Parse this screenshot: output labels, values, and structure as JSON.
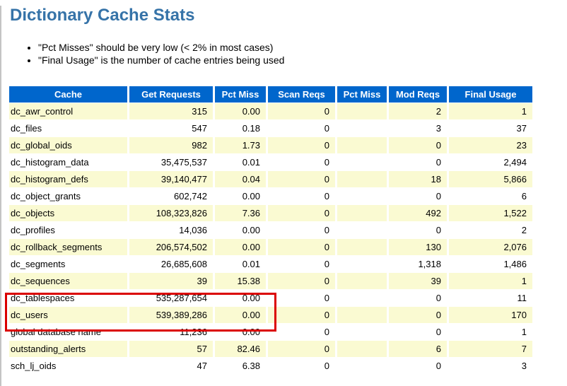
{
  "page": {
    "title": "Dictionary Cache Stats",
    "notes": [
      "\"Pct Misses\" should be very low (< 2% in most cases)",
      "\"Final Usage\" is the number of cache entries being used"
    ]
  },
  "colors": {
    "title_text": "#3673a8",
    "table_header_bg": "#0066cc",
    "table_header_text": "#ffffff",
    "alt_row_bg": "#fafad2",
    "highlight_border": "#db0000"
  },
  "table": {
    "headers": [
      "Cache",
      "Get Requests",
      "Pct Miss",
      "Scan Reqs",
      "Pct Miss",
      "Mod Reqs",
      "Final Usage"
    ],
    "rows": [
      [
        "dc_awr_control",
        "315",
        "0.00",
        "0",
        "",
        "2",
        "1"
      ],
      [
        "dc_files",
        "547",
        "0.18",
        "0",
        "",
        "3",
        "37"
      ],
      [
        "dc_global_oids",
        "982",
        "1.73",
        "0",
        "",
        "0",
        "23"
      ],
      [
        "dc_histogram_data",
        "35,475,537",
        "0.01",
        "0",
        "",
        "0",
        "2,494"
      ],
      [
        "dc_histogram_defs",
        "39,140,477",
        "0.04",
        "0",
        "",
        "18",
        "5,866"
      ],
      [
        "dc_object_grants",
        "602,742",
        "0.00",
        "0",
        "",
        "0",
        "6"
      ],
      [
        "dc_objects",
        "108,323,826",
        "7.36",
        "0",
        "",
        "492",
        "1,522"
      ],
      [
        "dc_profiles",
        "14,036",
        "0.00",
        "0",
        "",
        "0",
        "2"
      ],
      [
        "dc_rollback_segments",
        "206,574,502",
        "0.00",
        "0",
        "",
        "130",
        "2,076"
      ],
      [
        "dc_segments",
        "26,685,608",
        "0.01",
        "0",
        "",
        "1,318",
        "1,486"
      ],
      [
        "dc_sequences",
        "39",
        "15.38",
        "0",
        "",
        "39",
        "1"
      ],
      [
        "dc_tablespaces",
        "535,287,654",
        "0.00",
        "0",
        "",
        "0",
        "11"
      ],
      [
        "dc_users",
        "539,389,286",
        "0.00",
        "0",
        "",
        "0",
        "170"
      ],
      [
        "global database name",
        "11,236",
        "0.00",
        "0",
        "",
        "0",
        "1"
      ],
      [
        "outstanding_alerts",
        "57",
        "82.46",
        "0",
        "",
        "6",
        "7"
      ],
      [
        "sch_lj_oids",
        "47",
        "6.38",
        "0",
        "",
        "0",
        "3"
      ]
    ]
  },
  "annotation": {
    "type": "red-highlight-box",
    "highlighted_rows": [
      "dc_tablespaces",
      "dc_users"
    ]
  }
}
